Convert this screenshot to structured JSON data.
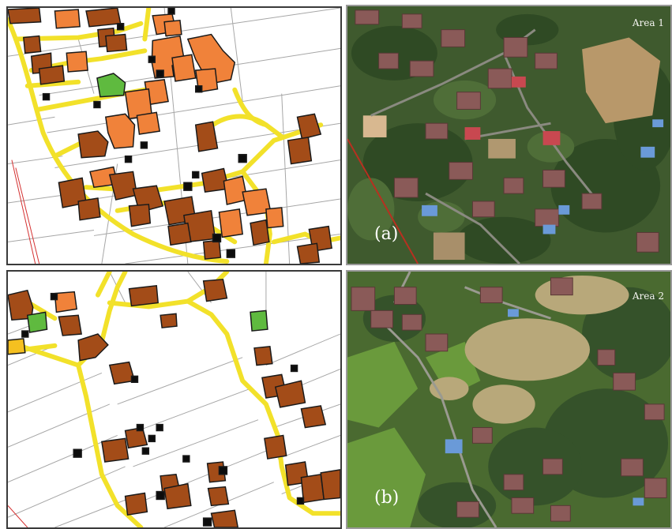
{
  "panels": {
    "top_right": {
      "area_label": "Area 1",
      "panel_label": "(a)"
    },
    "bottom_right": {
      "area_label": "Area 2",
      "panel_label": "(b)"
    }
  },
  "colors": {
    "road": "#f2e12a",
    "building_orange": "#f0823a",
    "building_brown": "#a34c18",
    "building_green": "#5fba3f",
    "building_black": "#0c0c0c",
    "parcel_line": "#a0a0a0"
  }
}
